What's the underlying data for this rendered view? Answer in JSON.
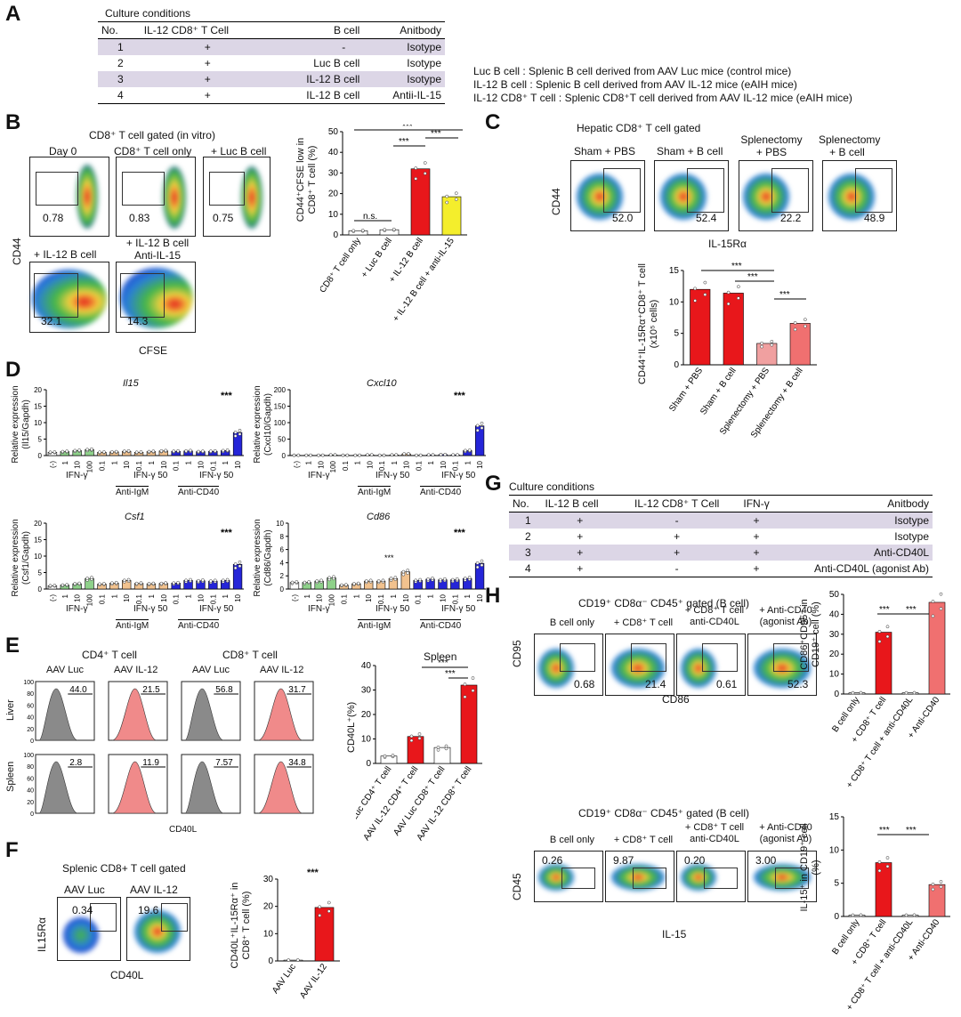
{
  "panels": {
    "a": "A",
    "b": "B",
    "c": "C",
    "d": "D",
    "e": "E",
    "f": "F",
    "g": "G",
    "h": "H"
  },
  "a": {
    "title": "Culture conditions",
    "headers": [
      "No.",
      "IL-12 CD8⁺ T Cell",
      "B cell",
      "Anitbody"
    ],
    "rows": [
      [
        "1",
        "+",
        "-",
        "Isotype"
      ],
      [
        "2",
        "+",
        "Luc B cell",
        "Isotype"
      ],
      [
        "3",
        "+",
        "IL-12 B cell",
        "Isotype"
      ],
      [
        "4",
        "+",
        "IL-12 B cell",
        "Antii-IL-15"
      ]
    ],
    "legend": [
      "Luc B cell :   Splenic B cell derived from AAV Luc mice (control  mice)",
      "IL-12 B cell : Splenic B cell derived from AAV IL-12 mice (eAIH mice)",
      "IL-12 CD8⁺ T cell : Splenic CD8⁺T cell derived from AAV IL-12 mice (eAIH mice)"
    ]
  },
  "b": {
    "title": "CD8⁺ T cell gated (in vitro)",
    "plots": [
      {
        "label": "Day 0",
        "value": "0.78"
      },
      {
        "label": "CD8⁺ T cell only",
        "value": "0.83"
      },
      {
        "label": "+ Luc B cell",
        "value": "0.75"
      },
      {
        "label": "+ IL-12 B cell",
        "value": "32.1"
      },
      {
        "label": "+ IL-12 B cell Anti-IL-15",
        "value": "14.3"
      }
    ],
    "xaxis": "CFSE",
    "yaxis": "CD44",
    "sig": [
      "n.s.",
      "***",
      "***",
      "***"
    ]
  },
  "c": {
    "title": "Hepatic CD8⁺ T cell gated",
    "plots": [
      {
        "label": "Sham + PBS",
        "value": "52.0"
      },
      {
        "label": "Sham + B cell",
        "value": "52.4"
      },
      {
        "label": "Splenectomy + PBS",
        "value": "22.2"
      },
      {
        "label": "Splenectomy + B cell",
        "value": "48.9"
      }
    ],
    "xaxis": "IL-15Rα",
    "yaxis": "CD44",
    "sig": [
      "***",
      "***",
      "***"
    ]
  },
  "d": {
    "genes": [
      "Il15",
      "Cxcl10",
      "Csf1",
      "Cd86"
    ],
    "ylabels": [
      "Relative expression (Il15/Gapdh)",
      "Relative expression (Cxcl10/Gapdh)",
      "Relative expression (Csf1/Gapdh)",
      "Relative expression (Cd86/Gapdh)"
    ],
    "groups": [
      "IFN-γ",
      "IFN-γ 50",
      "IFN-γ 50"
    ],
    "subgroups": [
      "Anti-IgM",
      "Anti-CD40"
    ],
    "sig": "***"
  },
  "e": {
    "cols": [
      "CD4⁺ T cell",
      "CD8⁺ T cell"
    ],
    "sub": [
      "AAV Luc",
      "AAV IL-12",
      "AAV Luc",
      "AAV IL-12"
    ],
    "rows": [
      "Liver",
      "Spleen"
    ],
    "values": [
      [
        "44.0",
        "21.5",
        "56.8",
        "31.7"
      ],
      [
        "2.8",
        "11.9",
        "7.57",
        "34.8"
      ]
    ],
    "xaxis": "CD40L",
    "bar_title": "Spleen",
    "sig": [
      "***",
      "***"
    ]
  },
  "f": {
    "title": "Splenic CD8+ T cell gated",
    "plots": [
      {
        "label": "AAV Luc",
        "value": "0.34"
      },
      {
        "label": "AAV IL-12",
        "value": "19.6"
      }
    ],
    "xaxis": "CD40L",
    "yaxis": "IL15Rα",
    "sig": "***"
  },
  "g": {
    "title": "Culture conditions",
    "headers": [
      "No.",
      "IL-12 B cell",
      "IL-12 CD8⁺ T Cell",
      "IFN-γ",
      "Anitbody"
    ],
    "rows": [
      [
        "1",
        "+",
        "-",
        "+",
        "Isotype"
      ],
      [
        "2",
        "+",
        "+",
        "+",
        "Isotype"
      ],
      [
        "3",
        "+",
        "+",
        "+",
        "Anti-CD40L"
      ],
      [
        "4",
        "+",
        "-",
        "+",
        "Anti-CD40L (agonist Ab)"
      ]
    ]
  },
  "h": {
    "title": "CD19⁺ CD8α⁻ CD45⁺ gated (B cell)",
    "plots_top": [
      {
        "label": "B cell only",
        "value": "0.68"
      },
      {
        "label": "+ CD8⁺ T cell",
        "value": "21.4"
      },
      {
        "label": "+ CD8⁺ T cell anti-CD40L",
        "value": "0.61"
      },
      {
        "label": "+ Anti-CD40 (agonist Ab)",
        "value": "52.3"
      }
    ],
    "plots_bot": [
      {
        "label": "B cell only",
        "value": "0.26"
      },
      {
        "label": "+ CD8⁺ T cell",
        "value": "9.87"
      },
      {
        "label": "+ CD8⁺ T cell anti-CD40L",
        "value": "0.20"
      },
      {
        "label": "+ Anti-CD40 (agonist Ab)",
        "value": "3.00"
      }
    ],
    "x_top": "CD86",
    "y_top": "CD95",
    "x_bot": "IL-15",
    "y_bot": "CD45",
    "sig": [
      "***",
      "***"
    ]
  },
  "chart_data": [
    {
      "id": "b-bar",
      "type": "bar",
      "ylabel": "CD44⁺CFSE low in CD8⁺ T cell (%)",
      "ylim": [
        0,
        50
      ],
      "ticks": [
        0,
        10,
        20,
        30,
        40,
        50
      ],
      "categories": [
        "CD8⁺ T cell only",
        "+ Luc B cell",
        "+ IL-12 B cell",
        "+ IL-12 B cell + anti-IL-15"
      ],
      "values": [
        2,
        2.5,
        32,
        18.5
      ],
      "colors": [
        "#ffffff",
        "#ffffff",
        "#e8171b",
        "#f4ee2c"
      ]
    },
    {
      "id": "c-bar",
      "type": "bar",
      "ylabel": "CD44⁺IL-15Rα⁺CD8⁺ T cell (x10⁵ cells)",
      "ylim": [
        0,
        15
      ],
      "ticks": [
        0,
        5,
        10,
        15
      ],
      "categories": [
        "Sham + PBS",
        "Sham + B cell",
        "Splenectomy + PBS",
        "Splenectomy + B cell"
      ],
      "values": [
        12,
        11.4,
        3.4,
        6.6
      ],
      "colors": [
        "#e8171b",
        "#e8171b",
        "#f0a0a0",
        "#f07070"
      ]
    },
    {
      "id": "d-il15",
      "type": "bar",
      "ylim": [
        0,
        20
      ],
      "ticks": [
        0,
        5,
        10,
        15,
        20
      ],
      "xlabels": [
        "(-)",
        "1",
        "10",
        "100",
        "0.1",
        "1",
        "10",
        "0.1",
        "1",
        "10",
        "0.1",
        "1",
        "10",
        "0.1",
        "1",
        "10"
      ],
      "values": [
        1,
        1.2,
        1.5,
        1.8,
        1,
        1.1,
        1.3,
        1,
        1.2,
        1.4,
        1.3,
        1.4,
        1.2,
        1.3,
        1.5,
        7
      ]
    },
    {
      "id": "d-cxcl10",
      "type": "bar",
      "ylim": [
        0,
        200
      ],
      "ticks": [
        0,
        50,
        100,
        150,
        200
      ],
      "xlabels": [
        "(-)",
        "1",
        "10",
        "100",
        "0.1",
        "1",
        "10",
        "0.1",
        "1",
        "10",
        "0.1",
        "1",
        "10",
        "0.1",
        "1",
        "10"
      ],
      "values": [
        1,
        1,
        1,
        2,
        1,
        1,
        2,
        1,
        2,
        5,
        1,
        2,
        3,
        2,
        15,
        90
      ]
    },
    {
      "id": "d-csf1",
      "type": "bar",
      "ylim": [
        0,
        20
      ],
      "ticks": [
        0,
        5,
        10,
        15,
        20
      ],
      "xlabels": [
        "(-)",
        "1",
        "10",
        "100",
        "0.1",
        "1",
        "10",
        "0.1",
        "1",
        "10",
        "0.1",
        "1",
        "10",
        "0.1",
        "1",
        "10"
      ],
      "values": [
        1,
        1.2,
        1.6,
        3.2,
        1.5,
        1.8,
        2.6,
        1.7,
        1.6,
        1.7,
        1.8,
        2.6,
        2.5,
        2.4,
        2.6,
        7.5
      ]
    },
    {
      "id": "d-cd86",
      "type": "bar",
      "ylim": [
        0,
        10
      ],
      "ticks": [
        0,
        2,
        4,
        6,
        8,
        10
      ],
      "xlabels": [
        "(-)",
        "1",
        "10",
        "100",
        "0.1",
        "1",
        "10",
        "0.1",
        "1",
        "10",
        "0.1",
        "1",
        "10",
        "0.1",
        "1",
        "10"
      ],
      "values": [
        1,
        1,
        1.2,
        1.7,
        0.6,
        0.8,
        1.2,
        1.2,
        1.6,
        2.6,
        1.3,
        1.5,
        1.4,
        1.4,
        1.6,
        3.9
      ]
    },
    {
      "id": "e-bar",
      "type": "bar",
      "ylabel": "CD40L⁺(%)",
      "ylim": [
        0,
        40
      ],
      "ticks": [
        0,
        10,
        20,
        30,
        40
      ],
      "categories": [
        "AAV Luc CD4⁺ T cell",
        "AAV IL-12 CD4⁺ T cell",
        "AAV Luc CD8⁺ T cell",
        "AAV IL-12 CD8⁺ T cell"
      ],
      "values": [
        3,
        11,
        6.5,
        32
      ],
      "colors": [
        "#ffffff",
        "#e8171b",
        "#ffffff",
        "#e8171b"
      ]
    },
    {
      "id": "f-bar",
      "type": "bar",
      "ylabel": "CD40L⁺IL-15Rα⁺ in CD8⁺ T cell (%)",
      "ylim": [
        0,
        30
      ],
      "ticks": [
        0,
        10,
        20,
        30
      ],
      "categories": [
        "AAV Luc",
        "AAV IL-12"
      ],
      "values": [
        0.3,
        19.6
      ],
      "colors": [
        "#ffffff",
        "#e8171b"
      ]
    },
    {
      "id": "h-top-bar",
      "type": "bar",
      "ylabel": "CD86⁺CD95⁺ in CD19⁺ cell (%)",
      "ylim": [
        0,
        50
      ],
      "ticks": [
        0,
        10,
        20,
        30,
        40,
        50
      ],
      "categories": [
        "B cell only",
        "+ CD8⁺ T cell",
        "+ CD8⁺ T cell + anti-CD40L",
        "+ Anti-CD40"
      ],
      "values": [
        0.6,
        31,
        0.6,
        46
      ],
      "colors": [
        "#ffffff",
        "#e8171b",
        "#ffffff",
        "#f07070"
      ]
    },
    {
      "id": "h-bot-bar",
      "type": "bar",
      "ylabel": "IL-15⁺ in CD19⁺ cell (%)",
      "ylim": [
        0,
        15
      ],
      "ticks": [
        0,
        5,
        10,
        15
      ],
      "categories": [
        "B cell only",
        "+ CD8⁺ T cell",
        "+ CD8⁺ T cell + anti-CD40L",
        "+ Anti-CD40"
      ],
      "values": [
        0.2,
        8.1,
        0.2,
        4.8
      ],
      "colors": [
        "#ffffff",
        "#e8171b",
        "#ffffff",
        "#f07070"
      ]
    }
  ]
}
